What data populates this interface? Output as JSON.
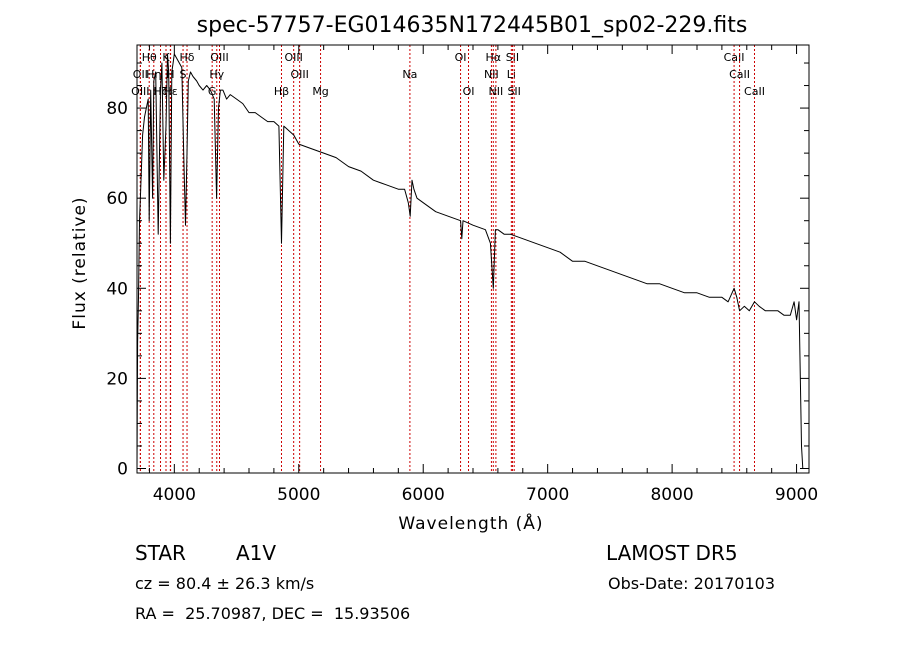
{
  "chart_data": {
    "type": "line",
    "title": "spec-57757-EG014635N172445B01_sp02-229.fits",
    "xlabel": "Wavelength (Å)",
    "ylabel": "Flux (relative)",
    "xlim": [
      3700,
      9100
    ],
    "ylim": [
      -1,
      94
    ],
    "x_ticks": [
      {
        "value": 4000,
        "label": "4000"
      },
      {
        "value": 5000,
        "label": "5000"
      },
      {
        "value": 6000,
        "label": "6000"
      },
      {
        "value": 7000,
        "label": "7000"
      },
      {
        "value": 8000,
        "label": "8000"
      },
      {
        "value": 9000,
        "label": "9000"
      }
    ],
    "y_ticks": [
      {
        "value": 0,
        "label": "0"
      },
      {
        "value": 20,
        "label": "20"
      },
      {
        "value": 40,
        "label": "40"
      },
      {
        "value": 60,
        "label": "60"
      },
      {
        "value": 80,
        "label": "80"
      }
    ],
    "grid": false,
    "line_color": "#000000",
    "marker_color": "#cc0000",
    "series": [
      {
        "x": [
          3700,
          3705,
          3712,
          3720,
          3730,
          3745,
          3760,
          3775,
          3790,
          3798,
          3810,
          3825,
          3835,
          3850,
          3870,
          3889,
          3900,
          3915,
          3933,
          3945,
          3955,
          3968,
          3980,
          3990,
          4000,
          4020,
          4040,
          4060,
          4075,
          4090,
          4102,
          4112,
          4130,
          4150,
          4180,
          4200,
          4230,
          4260,
          4290,
          4320,
          4340,
          4355,
          4370,
          4390,
          4420,
          4450,
          4500,
          4550,
          4600,
          4650,
          4700,
          4750,
          4800,
          4840,
          4861,
          4880,
          4920,
          4960,
          5000,
          5100,
          5200,
          5300,
          5400,
          5500,
          5600,
          5700,
          5800,
          5850,
          5880,
          5895,
          5910,
          5925,
          5950,
          6000,
          6100,
          6200,
          6300,
          6310,
          6320,
          6400,
          6500,
          6540,
          6563,
          6580,
          6600,
          6650,
          6700,
          6800,
          6900,
          7000,
          7100,
          7200,
          7300,
          7400,
          7500,
          7600,
          7700,
          7800,
          7900,
          8000,
          8100,
          8200,
          8300,
          8400,
          8450,
          8498,
          8520,
          8542,
          8580,
          8620,
          8662,
          8700,
          8750,
          8800,
          8850,
          8900,
          8950,
          8980,
          9000,
          9020,
          9040,
          9050,
          9060
        ],
        "y": [
          0,
          28,
          38,
          55,
          62,
          74,
          78,
          80,
          82,
          55,
          84,
          60,
          86,
          88,
          52,
          84,
          90,
          64,
          76,
          92,
          88,
          50,
          88,
          90,
          92,
          91,
          90,
          89,
          70,
          54,
          70,
          86,
          88,
          87,
          86,
          85,
          84,
          85,
          84,
          82,
          60,
          80,
          84,
          84,
          82,
          83,
          82,
          81,
          79,
          79,
          78,
          77,
          77,
          76,
          50,
          76,
          75,
          74,
          72,
          71,
          70,
          69,
          67,
          66,
          64,
          63,
          62,
          62,
          59,
          56,
          64,
          62,
          60,
          59,
          57,
          56,
          55,
          51,
          55,
          54,
          53,
          50,
          40,
          53,
          53,
          52,
          52,
          51,
          50,
          49,
          48,
          46,
          46,
          45,
          44,
          43,
          42,
          41,
          41,
          40,
          39,
          39,
          38,
          38,
          37,
          40,
          38,
          35,
          36,
          35,
          37,
          36,
          35,
          35,
          35,
          34,
          34,
          37,
          33,
          37,
          5,
          0,
          0
        ]
      }
    ],
    "line_markers": [
      {
        "wavelength": 3727,
        "label": "OII",
        "row": 1
      },
      {
        "wavelength": 3727,
        "label": "OIII",
        "row": 2
      },
      {
        "wavelength": 3798,
        "label": "Hθ",
        "row": 0
      },
      {
        "wavelength": 3835,
        "label": "Hη",
        "row": 1
      },
      {
        "wavelength": 3889,
        "label": "Hζ",
        "row": 2
      },
      {
        "wavelength": 3933,
        "label": "K",
        "row": 0
      },
      {
        "wavelength": 3968,
        "label": "H",
        "row": 1
      },
      {
        "wavelength": 3970,
        "label": "Hε",
        "row": 2
      },
      {
        "wavelength": 4102,
        "label": "Hδ",
        "row": 0
      },
      {
        "wavelength": 4070,
        "label": "S",
        "row": 1
      },
      {
        "wavelength": 4304,
        "label": "G",
        "row": 2
      },
      {
        "wavelength": 4363,
        "label": "OIII",
        "row": 0
      },
      {
        "wavelength": 4341,
        "label": "Hγ",
        "row": 1
      },
      {
        "wavelength": 4861,
        "label": "Hβ",
        "row": 2
      },
      {
        "wavelength": 4959,
        "label": "OIII",
        "row": 0
      },
      {
        "wavelength": 5007,
        "label": "OIII",
        "row": 1
      },
      {
        "wavelength": 5175,
        "label": "Mg",
        "row": 2
      },
      {
        "wavelength": 5893,
        "label": "Na",
        "row": 1
      },
      {
        "wavelength": 6300,
        "label": "OI",
        "row": 0
      },
      {
        "wavelength": 6364,
        "label": "OI",
        "row": 2
      },
      {
        "wavelength": 6563,
        "label": "Hα",
        "row": 0
      },
      {
        "wavelength": 6548,
        "label": "NII",
        "row": 1
      },
      {
        "wavelength": 6584,
        "label": "NII",
        "row": 2
      },
      {
        "wavelength": 6717,
        "label": "SII",
        "row": 0
      },
      {
        "wavelength": 6708,
        "label": "Li",
        "row": 1
      },
      {
        "wavelength": 6731,
        "label": "SII",
        "row": 2
      },
      {
        "wavelength": 8498,
        "label": "CaII",
        "row": 0
      },
      {
        "wavelength": 8542,
        "label": "CaII",
        "row": 1
      },
      {
        "wavelength": 8662,
        "label": "CaII",
        "row": 2
      }
    ]
  },
  "info": {
    "object_class": "STAR",
    "subclass": "A1V",
    "velocity": "cz = 80.4 ± 26.3 km/s",
    "coordinates": "RA =  25.70987, DEC =  15.93506",
    "survey": "LAMOST DR5",
    "obs_date": "Obs-Date: 20170103"
  }
}
